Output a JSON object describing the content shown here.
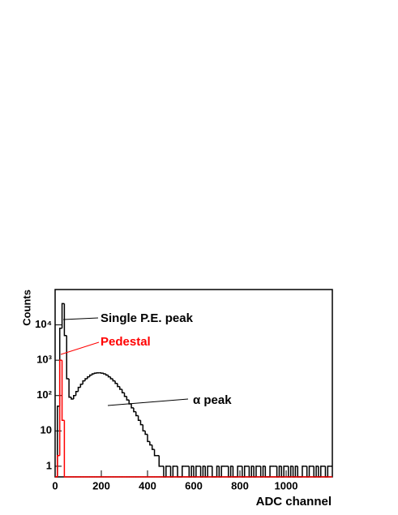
{
  "chart_data": {
    "type": "histogram",
    "xlabel": "ADC channel",
    "ylabel": "Counts",
    "bins": [
      0,
      10,
      20,
      30,
      40,
      50,
      60,
      70,
      80,
      90,
      100,
      110,
      120,
      130,
      140,
      150,
      160,
      170,
      180,
      190,
      200,
      210,
      220,
      230,
      240,
      250,
      260,
      270,
      280,
      290,
      300,
      310,
      320,
      330,
      340,
      350,
      360,
      370,
      380,
      390,
      400,
      410,
      420,
      430,
      440,
      450,
      460,
      470,
      480,
      490,
      500,
      510,
      520,
      530,
      540,
      550,
      560,
      570,
      580,
      590,
      600,
      610,
      620,
      630,
      640,
      650,
      660,
      670,
      680,
      690,
      700,
      710,
      720,
      730,
      740,
      750,
      760,
      770,
      780,
      790,
      800,
      810,
      820,
      830,
      840,
      850,
      860,
      870,
      880,
      890,
      900,
      910,
      920,
      930,
      940,
      950,
      960,
      970,
      980,
      990,
      1000,
      1010,
      1020,
      1030,
      1040,
      1050,
      1060,
      1070,
      1080,
      1090,
      1100,
      1110,
      1120,
      1130,
      1140,
      1150,
      1160,
      1170,
      1180,
      1190,
      1200
    ],
    "series": [
      {
        "color": "#000000",
        "values": [
          0,
          50,
          8000,
          40000,
          5000,
          300,
          90,
          80,
          100,
          130,
          170,
          210,
          260,
          300,
          340,
          380,
          410,
          430,
          440,
          440,
          430,
          410,
          380,
          340,
          300,
          260,
          220,
          180,
          150,
          120,
          95,
          75,
          58,
          45,
          35,
          27,
          20,
          15,
          10,
          8,
          5,
          4,
          3,
          2,
          2,
          1,
          1,
          0,
          1,
          1,
          0,
          1,
          1,
          0,
          0,
          1,
          1,
          1,
          0,
          1,
          0,
          1,
          1,
          0,
          1,
          0,
          1,
          1,
          0,
          0,
          1,
          0,
          1,
          1,
          1,
          0,
          1,
          0,
          0,
          1,
          1,
          0,
          1,
          1,
          0,
          1,
          0,
          1,
          1,
          0,
          1,
          0,
          0,
          1,
          1,
          1,
          0,
          1,
          0,
          1,
          1,
          0,
          1,
          0,
          1,
          0,
          0,
          1,
          1,
          0,
          1,
          1,
          0,
          1,
          0,
          1,
          1,
          0,
          1,
          1
        ]
      },
      {
        "color": "#ff0000",
        "values": [
          0,
          2,
          1000,
          20,
          0,
          0,
          0,
          0,
          0,
          0,
          0,
          0,
          0,
          0,
          0,
          0,
          0,
          0,
          0,
          0,
          0,
          0,
          0,
          0,
          0,
          0,
          0,
          0,
          0,
          0,
          0,
          0,
          0,
          0,
          0,
          0,
          0,
          0,
          0,
          0,
          0,
          0,
          0,
          0,
          0,
          0,
          0,
          0,
          0,
          0,
          0,
          0,
          0,
          0,
          0,
          0,
          0,
          0,
          0,
          0,
          0,
          0,
          0,
          0,
          0,
          0,
          0,
          0,
          0,
          0,
          0,
          0,
          0,
          0,
          0,
          0,
          0,
          0,
          0,
          0,
          0,
          0,
          0,
          0,
          0,
          0,
          0,
          0,
          0,
          0,
          0,
          0,
          0,
          0,
          0,
          0,
          0,
          0,
          0,
          0,
          0,
          0,
          0,
          0,
          0,
          0,
          0,
          0,
          0,
          0,
          0,
          0,
          0,
          0,
          0,
          0,
          0,
          0,
          0,
          0
        ]
      }
    ],
    "xlim": [
      0,
      1200
    ],
    "xticks": [
      0,
      200,
      400,
      600,
      800,
      1000
    ],
    "ylim": [
      0.5,
      100000
    ],
    "ylog": true,
    "yticks": [
      1,
      10,
      {
        "value": 100,
        "label": "10²"
      },
      {
        "value": 1000,
        "label": "10³"
      },
      {
        "value": 10000,
        "label": "10⁴"
      }
    ],
    "annotations": [
      {
        "text": "Single P.E. peak",
        "color": "#000000"
      },
      {
        "text": "Pedestal",
        "color": "#ff0000"
      },
      {
        "text": "α peak",
        "color": "#000000"
      }
    ]
  }
}
